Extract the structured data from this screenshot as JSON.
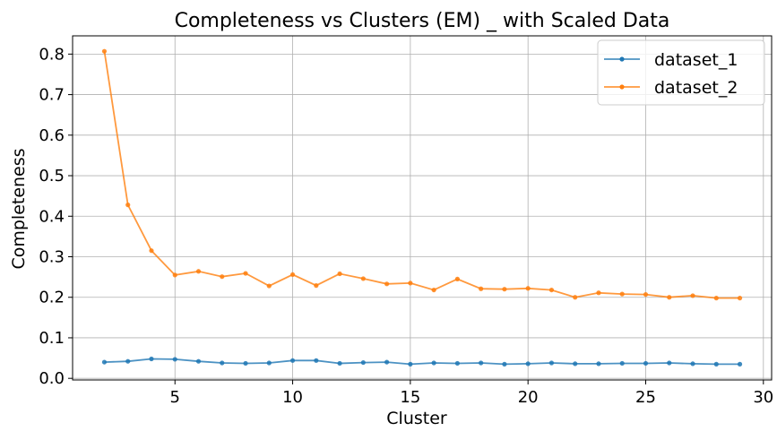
{
  "chart_data": {
    "type": "line",
    "title": "Completeness vs Clusters (EM) _ with Scaled Data",
    "xlabel": "Cluster",
    "ylabel": "Completeness",
    "xlim": [
      0.65,
      30.35
    ],
    "ylim": [
      -0.004,
      0.845
    ],
    "xticks": [
      5,
      10,
      15,
      20,
      25,
      30
    ],
    "yticks": [
      0.0,
      0.1,
      0.2,
      0.3,
      0.4,
      0.5,
      0.6,
      0.7,
      0.8
    ],
    "grid": true,
    "legend_position": "top-right",
    "x": [
      2,
      3,
      4,
      5,
      6,
      7,
      8,
      9,
      10,
      11,
      12,
      13,
      14,
      15,
      16,
      17,
      18,
      19,
      20,
      21,
      22,
      23,
      24,
      25,
      26,
      27,
      28,
      29
    ],
    "series": [
      {
        "name": "dataset_1",
        "color": "#1f77b4",
        "values": [
          0.04,
          0.042,
          0.048,
          0.047,
          0.042,
          0.038,
          0.037,
          0.038,
          0.044,
          0.044,
          0.037,
          0.039,
          0.04,
          0.035,
          0.038,
          0.037,
          0.038,
          0.035,
          0.036,
          0.038,
          0.036,
          0.036,
          0.037,
          0.037,
          0.038,
          0.036,
          0.035,
          0.035
        ]
      },
      {
        "name": "dataset_2",
        "color": "#ff7f0e",
        "values": [
          0.807,
          0.428,
          0.315,
          0.255,
          0.264,
          0.251,
          0.259,
          0.228,
          0.256,
          0.229,
          0.258,
          0.246,
          0.233,
          0.235,
          0.218,
          0.245,
          0.221,
          0.22,
          0.222,
          0.218,
          0.2,
          0.211,
          0.208,
          0.207,
          0.2,
          0.204,
          0.198,
          0.198
        ]
      }
    ]
  }
}
